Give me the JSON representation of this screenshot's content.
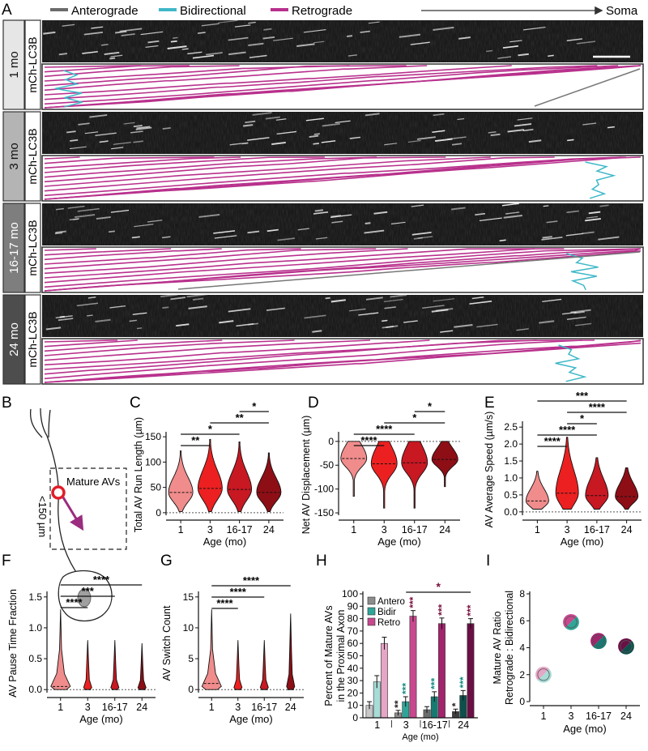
{
  "figure": {
    "panel_letters": [
      "A",
      "B",
      "C",
      "D",
      "E",
      "F",
      "G",
      "H",
      "I"
    ],
    "legend_top": [
      {
        "label": "Anterograde",
        "color": "#6b6b6b"
      },
      {
        "label": "Bidirectional",
        "color": "#3fb8c9"
      },
      {
        "label": "Retrograde",
        "color": "#b8308c"
      }
    ],
    "direction_label": "Soma",
    "kymograph_rows": [
      {
        "age": "1 mo",
        "channel": "mCh-LC3B",
        "shade": "#e6e6e6"
      },
      {
        "age": "3 mo",
        "channel": "mCh-LC3B",
        "shade": "#b4b4b4"
      },
      {
        "age": "16-17 mo",
        "channel": "mCh-LC3B",
        "shade": "#7e7e7e"
      },
      {
        "age": "24 mo",
        "channel": "mCh-LC3B",
        "shade": "#4d4d4d"
      }
    ],
    "schematic": {
      "label_avs": "Mature AVs",
      "label_length": "<150 µm"
    }
  },
  "colors": {
    "ages": [
      "#f08c8c",
      "#ec2020",
      "#c81822",
      "#8e0e16"
    ],
    "antero": [
      "#c8c8c8",
      "#8c8c8c",
      "#6c6c6c",
      "#3e3e3e"
    ],
    "bidir": [
      "#a8dcd6",
      "#2fa598",
      "#177a72",
      "#0f4f4c"
    ],
    "retro": [
      "#e6a6c6",
      "#c8488e",
      "#a1246c",
      "#6b0f45"
    ],
    "teal_star": "#138a80",
    "maroon_star": "#7a0f3c"
  },
  "chart_data": [
    {
      "panel": "C",
      "type": "violin",
      "categories": [
        "1",
        "3",
        "16-17",
        "24"
      ],
      "xlabel": "Age (mo)",
      "ylabel": "Total AV Run Length (µm)",
      "yticks": [
        0,
        50,
        100,
        150
      ],
      "ylim": [
        -5,
        155
      ],
      "medians": [
        40,
        48,
        46,
        40
      ],
      "significance": [
        {
          "pair": [
            "1",
            "3"
          ],
          "label": "**"
        },
        {
          "pair": [
            "1",
            "16-17"
          ],
          "label": "*"
        },
        {
          "pair": [
            "3",
            "24"
          ],
          "label": "**"
        },
        {
          "pair": [
            "16-17",
            "24"
          ],
          "label": "*"
        }
      ]
    },
    {
      "panel": "D",
      "type": "violin",
      "categories": [
        "1",
        "3",
        "16-17",
        "24"
      ],
      "xlabel": "Age (mo)",
      "ylabel": "Net AV Displacement (µm)",
      "yticks": [
        0,
        -50,
        -100,
        -150
      ],
      "ylim": [
        -155,
        15
      ],
      "medians": [
        -36,
        -47,
        -45,
        -38
      ],
      "significance": [
        {
          "pair": [
            "1",
            "3"
          ],
          "label": "****"
        },
        {
          "pair": [
            "1",
            "16-17"
          ],
          "label": "****"
        },
        {
          "pair": [
            "3",
            "24"
          ],
          "label": "*"
        },
        {
          "pair": [
            "16-17",
            "24"
          ],
          "label": "*"
        }
      ]
    },
    {
      "panel": "E",
      "type": "violin",
      "categories": [
        "1",
        "3",
        "16-17",
        "24"
      ],
      "xlabel": "Age (mo)",
      "ylabel": "AV Average Speed (µm/s)",
      "yticks": [
        0.0,
        0.5,
        1.0,
        1.5,
        2.0,
        2.5
      ],
      "ylim": [
        -0.1,
        2.6
      ],
      "medians": [
        0.32,
        0.55,
        0.48,
        0.45
      ],
      "significance": [
        {
          "pair": [
            "1",
            "3"
          ],
          "label": "****"
        },
        {
          "pair": [
            "1",
            "16-17"
          ],
          "label": "****"
        },
        {
          "pair": [
            "3",
            "16-17"
          ],
          "label": "*"
        },
        {
          "pair": [
            "3",
            "24"
          ],
          "label": "****"
        },
        {
          "pair": [
            "1",
            "24"
          ],
          "label": "***"
        }
      ]
    },
    {
      "panel": "F",
      "type": "violin",
      "categories": [
        "1",
        "3",
        "16-17",
        "24"
      ],
      "xlabel": "Age (mo)",
      "ylabel": "AV Pause Time Fraction",
      "yticks": [
        0.0,
        0.5,
        1.0,
        1.5
      ],
      "ylim": [
        -0.05,
        1.55
      ],
      "medians": [
        0.05,
        0.0,
        0.0,
        0.0
      ],
      "significance": [
        {
          "pair": [
            "1",
            "3"
          ],
          "label": "****"
        },
        {
          "pair": [
            "1",
            "16-17"
          ],
          "label": "***"
        },
        {
          "pair": [
            "1",
            "24"
          ],
          "label": "****"
        }
      ]
    },
    {
      "panel": "G",
      "type": "violin",
      "categories": [
        "1",
        "3",
        "16-17",
        "24"
      ],
      "xlabel": "Age (mo)",
      "ylabel": "AV Switch Count",
      "yticks": [
        0,
        5,
        10,
        15
      ],
      "ylim": [
        -0.5,
        15.5
      ],
      "medians": [
        1,
        0,
        0,
        0
      ],
      "significance": [
        {
          "pair": [
            "1",
            "3"
          ],
          "label": "****"
        },
        {
          "pair": [
            "1",
            "16-17"
          ],
          "label": "****"
        },
        {
          "pair": [
            "1",
            "24"
          ],
          "label": "****"
        }
      ]
    },
    {
      "panel": "H",
      "type": "bar",
      "categories": [
        "1",
        "3",
        "16-17",
        "24"
      ],
      "xlabel": "Age (mo)",
      "ylabel": "Percent of Mature AVs in the Proximal Axon",
      "ylabel_lines": [
        "Percent of Mature AVs",
        "in the Proximal Axon"
      ],
      "yticks": [
        0,
        10,
        20,
        30,
        40,
        50,
        60,
        70,
        80,
        90,
        100
      ],
      "ylim": [
        0,
        100
      ],
      "legend": [
        "Antero",
        "Bidir",
        "Retro"
      ],
      "series": [
        {
          "name": "Antero",
          "values": [
            10,
            4,
            6.5,
            5
          ],
          "errors": [
            3,
            2,
            2.5,
            2
          ]
        },
        {
          "name": "Bidir",
          "values": [
            29,
            13,
            17,
            18
          ],
          "errors": [
            5,
            4,
            4,
            4
          ]
        },
        {
          "name": "Retro",
          "values": [
            60,
            82,
            76,
            76
          ],
          "errors": [
            5,
            4.5,
            4.5,
            4
          ]
        }
      ],
      "annotations": [
        {
          "series": "Antero",
          "category": "3",
          "label": "**"
        },
        {
          "series": "Antero",
          "category": "24",
          "label": "*"
        },
        {
          "series": "Bidir",
          "category": "3",
          "label": "***"
        },
        {
          "series": "Bidir",
          "category": "16-17",
          "label": "***"
        },
        {
          "series": "Bidir",
          "category": "24",
          "label": "***"
        },
        {
          "series": "Retro",
          "category": "3",
          "label": "***"
        },
        {
          "series": "Retro",
          "category": "16-17",
          "label": "***"
        },
        {
          "series": "Retro",
          "category": "24",
          "label": "***"
        },
        {
          "bracket": [
            "3",
            "24"
          ],
          "label": "*"
        }
      ]
    },
    {
      "panel": "I",
      "type": "scatter",
      "categories": [
        "1",
        "3",
        "16-17",
        "24"
      ],
      "xlabel": "Age (mo)",
      "ylabel": "Mature AV Ratio Retrograde : Bidirectional",
      "ylabel_lines": [
        "Mature AV Ratio",
        "Retrograde : Bidirectional"
      ],
      "yticks": [
        0,
        2,
        4,
        6,
        8
      ],
      "ylim": [
        0,
        8
      ],
      "values": [
        2.0,
        5.9,
        4.5,
        4.1
      ]
    }
  ]
}
